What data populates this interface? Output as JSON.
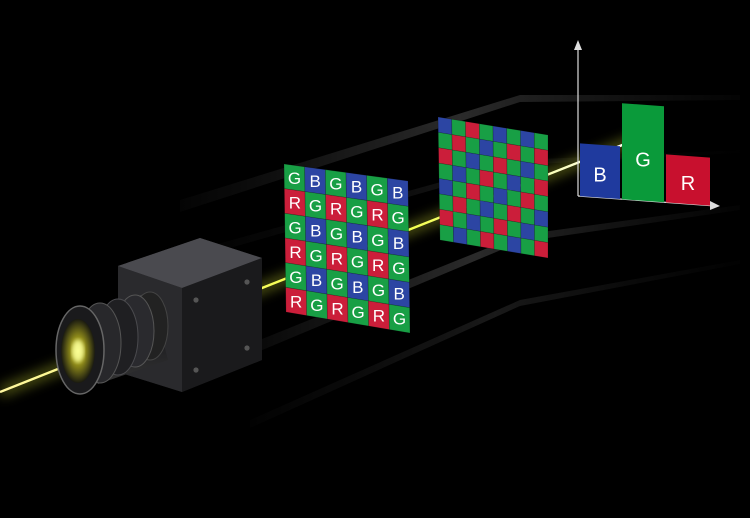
{
  "filter_grid": [
    [
      "G",
      "B",
      "G",
      "B",
      "G",
      "B"
    ],
    [
      "R",
      "G",
      "R",
      "G",
      "R",
      "G"
    ],
    [
      "G",
      "B",
      "G",
      "B",
      "G",
      "B"
    ],
    [
      "R",
      "G",
      "R",
      "G",
      "R",
      "G"
    ],
    [
      "G",
      "B",
      "G",
      "B",
      "G",
      "B"
    ],
    [
      "R",
      "G",
      "R",
      "G",
      "R",
      "G"
    ]
  ],
  "mosaic_grid": [
    [
      "B",
      "G",
      "R",
      "G",
      "B",
      "G",
      "B",
      "G"
    ],
    [
      "G",
      "R",
      "G",
      "B",
      "G",
      "R",
      "G",
      "R"
    ],
    [
      "R",
      "G",
      "B",
      "G",
      "R",
      "G",
      "B",
      "G"
    ],
    [
      "G",
      "B",
      "G",
      "R",
      "G",
      "B",
      "G",
      "R"
    ],
    [
      "B",
      "G",
      "R",
      "G",
      "B",
      "G",
      "R",
      "G"
    ],
    [
      "G",
      "R",
      "G",
      "B",
      "G",
      "R",
      "G",
      "B"
    ],
    [
      "R",
      "G",
      "B",
      "G",
      "R",
      "G",
      "B",
      "G"
    ],
    [
      "G",
      "B",
      "G",
      "R",
      "G",
      "B",
      "G",
      "R"
    ]
  ],
  "channel_bars": [
    {
      "label": "B",
      "level": 0.55
    },
    {
      "label": "G",
      "level": 1.0
    },
    {
      "label": "R",
      "level": 0.5
    }
  ],
  "colors": {
    "R": "#c8102e",
    "G": "#0a9a3a",
    "B": "#1f3a9e",
    "beam": "#f2ff3a",
    "camera": "#1b1b1d"
  }
}
